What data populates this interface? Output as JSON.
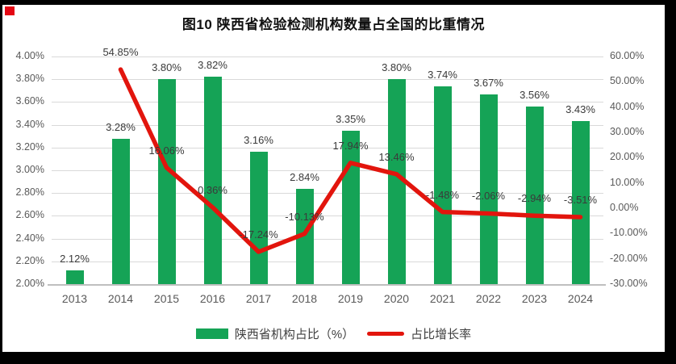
{
  "page": {
    "title": "图10  陕西省检验检测机构数量占全国的比重情况"
  },
  "marker": {
    "color": "#e40613"
  },
  "legend": {
    "bar_label": "陕西省机构占比（%）",
    "line_label": "占比增长率"
  },
  "chart_data": {
    "type": "combo-bar-line",
    "title": "图10  陕西省检验检测机构数量占全国的比重情况",
    "categories": [
      "2013",
      "2014",
      "2015",
      "2016",
      "2017",
      "2018",
      "2019",
      "2020",
      "2021",
      "2022",
      "2023",
      "2024"
    ],
    "series": [
      {
        "name": "陕西省机构占比（%）",
        "chart": "bar",
        "axis": "left",
        "color": "#15a356",
        "values": [
          2.12,
          3.28,
          3.8,
          3.82,
          3.16,
          2.84,
          3.35,
          3.8,
          3.74,
          3.67,
          3.56,
          3.43
        ],
        "data_labels": [
          "2.12%",
          "3.28%",
          "3.80%",
          "3.82%",
          "3.16%",
          "2.84%",
          "3.35%",
          "3.80%",
          "3.74%",
          "3.67%",
          "3.56%",
          "3.43%"
        ]
      },
      {
        "name": "占比增长率",
        "chart": "line",
        "axis": "right",
        "color": "#e2150d",
        "values": [
          null,
          54.85,
          16.06,
          0.36,
          -17.24,
          -10.13,
          17.94,
          13.46,
          -1.48,
          -2.06,
          -2.94,
          -3.51
        ],
        "data_labels": [
          null,
          "54.85%",
          "16.06%",
          "0.36%",
          "-17.24%",
          "-10.13%",
          "17.94%",
          "13.46%",
          "-1.48%",
          "-2.06%",
          "-2.94%",
          "-3.51%"
        ]
      }
    ],
    "left_axis": {
      "min": 2.0,
      "max": 4.0,
      "step": 0.2,
      "ticks": [
        "4.00%",
        "3.80%",
        "3.60%",
        "3.40%",
        "3.20%",
        "3.00%",
        "2.80%",
        "2.60%",
        "2.40%",
        "2.20%",
        "2.00%"
      ]
    },
    "right_axis": {
      "min": -30,
      "max": 60,
      "step": 10,
      "ticks": [
        "60.00%",
        "50.00%",
        "40.00%",
        "30.00%",
        "20.00%",
        "10.00%",
        "0.00%",
        "-10.00%",
        "-20.00%",
        "-30.00%"
      ]
    },
    "grid": true,
    "legend_position": "bottom",
    "xlabel": "",
    "ylabel_left": "",
    "ylabel_right": ""
  }
}
